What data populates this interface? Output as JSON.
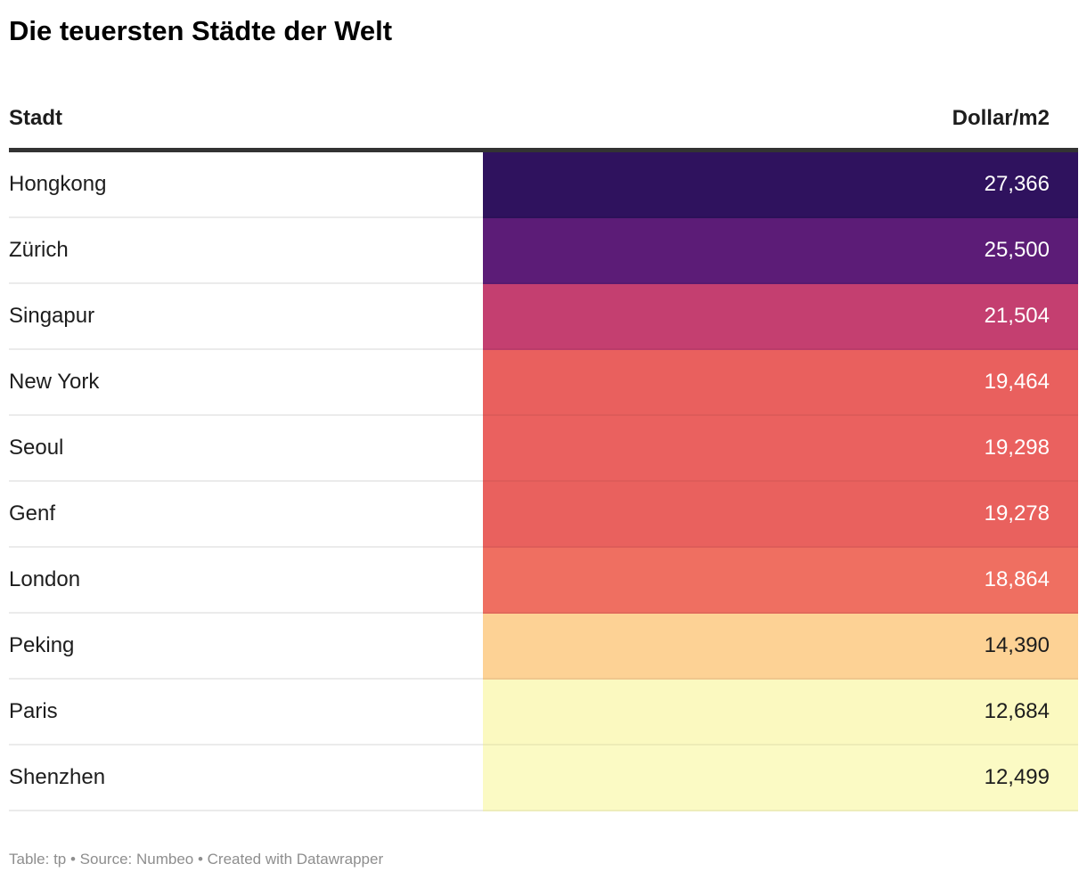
{
  "title": "Die teuersten Städte der Welt",
  "table": {
    "header": {
      "city": "Stadt",
      "value": "Dollar/m2"
    },
    "rows": [
      {
        "city": "Hongkong",
        "value": "27,366",
        "bg": "#2f125e",
        "text": "#ffffff"
      },
      {
        "city": "Zürich",
        "value": "25,500",
        "bg": "#5c1c77",
        "text": "#ffffff"
      },
      {
        "city": "Singapur",
        "value": "21,504",
        "bg": "#c43f70",
        "text": "#ffffff"
      },
      {
        "city": "New York",
        "value": "19,464",
        "bg": "#e9605e",
        "text": "#ffffff"
      },
      {
        "city": "Seoul",
        "value": "19,298",
        "bg": "#ea615f",
        "text": "#ffffff"
      },
      {
        "city": "Genf",
        "value": "19,278",
        "bg": "#e9615e",
        "text": "#ffffff"
      },
      {
        "city": "London",
        "value": "18,864",
        "bg": "#ef6f61",
        "text": "#ffffff"
      },
      {
        "city": "Peking",
        "value": "14,390",
        "bg": "#fdd295",
        "text": "#1d1d1d"
      },
      {
        "city": "Paris",
        "value": "12,684",
        "bg": "#fbf9c0",
        "text": "#1d1d1d"
      },
      {
        "city": "Shenzhen",
        "value": "12,499",
        "bg": "#fbfac4",
        "text": "#1d1d1d"
      }
    ]
  },
  "footer": {
    "text": "Table: tp • Source: Numbeo • Created with Datawrapper"
  },
  "colors": {
    "header_border": "#333333",
    "row_divider": "#ebebeb",
    "title_text": "#000000",
    "body_text": "#1d1d1d",
    "footer_text": "#8e8e8e"
  },
  "chart_data": {
    "type": "table",
    "title": "Die teuersten Städte der Welt",
    "columns": [
      "Stadt",
      "Dollar/m2"
    ],
    "categories": [
      "Hongkong",
      "Zürich",
      "Singapur",
      "New York",
      "Seoul",
      "Genf",
      "London",
      "Peking",
      "Paris",
      "Shenzhen"
    ],
    "values": [
      27366,
      25500,
      21504,
      19464,
      19298,
      19278,
      18864,
      14390,
      12684,
      12499
    ],
    "unit": "Dollar/m2",
    "heatmap": {
      "palette": "magma (reversed, dark = high)",
      "min": 12499,
      "max": 27366,
      "cell_colors": [
        "#2f125e",
        "#5c1c77",
        "#c43f70",
        "#e9605e",
        "#ea615f",
        "#e9615e",
        "#ef6f61",
        "#fdd295",
        "#fbf9c0",
        "#fbfac4"
      ]
    },
    "source": "Numbeo",
    "table_byline": "tp",
    "created_with": "Datawrapper",
    "legend_position": "none",
    "grid": false
  }
}
